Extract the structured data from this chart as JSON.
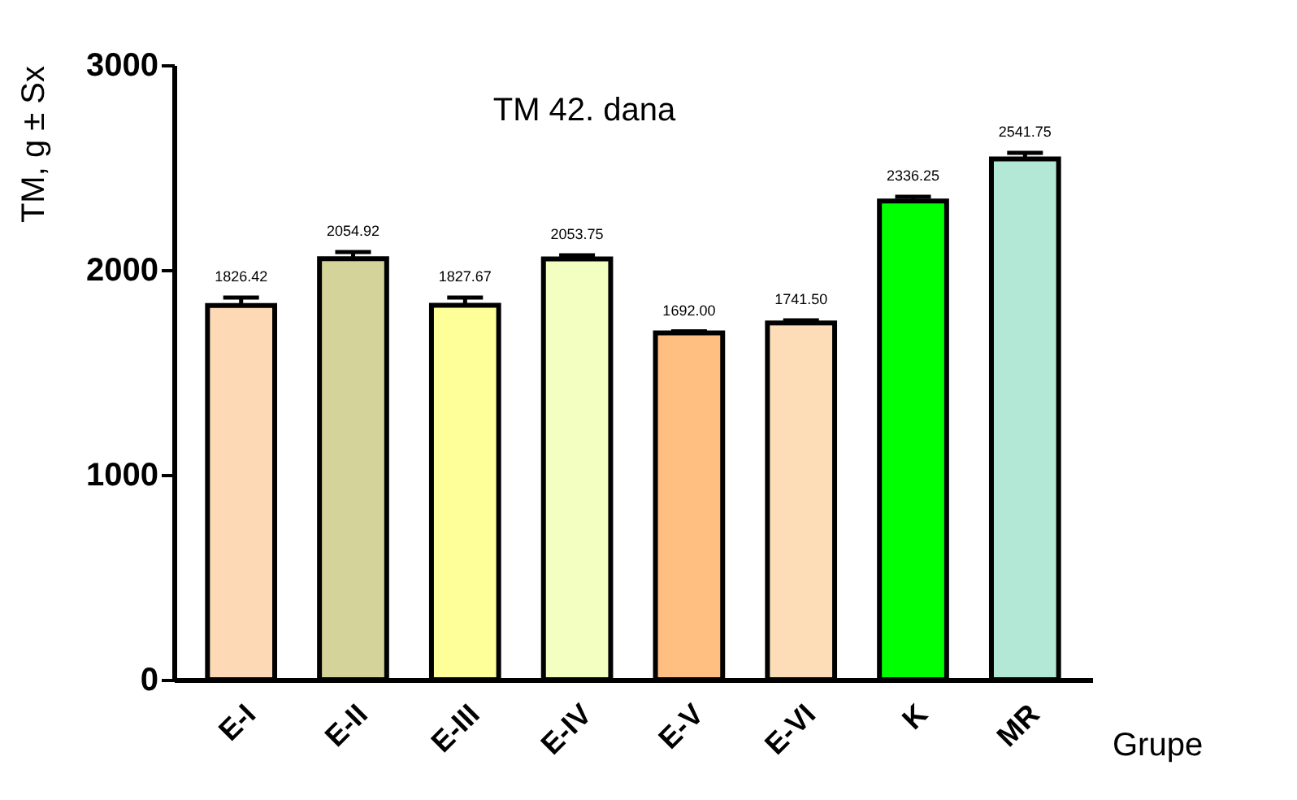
{
  "chart_data": {
    "type": "bar",
    "title": "TM 42. dana",
    "xlabel": "Grupe",
    "ylabel": "TM, g ± Sx",
    "categories": [
      "E-I",
      "E-II",
      "E-III",
      "E-IV",
      "E-V",
      "E-VI",
      "K",
      "MR"
    ],
    "values": [
      1826.42,
      2054.92,
      1827.67,
      2053.75,
      1692.0,
      1741.5,
      2336.25,
      2541.75
    ],
    "colors": [
      "#fdd9b5",
      "#d4d49a",
      "#ffff99",
      "#f2ffc0",
      "#ffbf80",
      "#fddcb8",
      "#00ff00",
      "#b3e8d6"
    ],
    "errors": [
      [
        1826.42,
        1865
      ],
      [
        2054.92,
        2087
      ],
      [
        1827.67,
        1865
      ],
      [
        2053.75,
        2071
      ],
      [
        1692.0,
        1700
      ],
      [
        1741.5,
        1754
      ],
      [
        2336.25,
        2357
      ],
      [
        2541.75,
        2571
      ]
    ],
    "value_labels": [
      "1826.42",
      "2054.92",
      "1827.67",
      "2053.75",
      "1692.00",
      "1741.50",
      "2336.25",
      "2541.75"
    ],
    "ylim": [
      0,
      3000
    ],
    "yticks": [
      0,
      1000,
      2000,
      3000
    ],
    "grid": false
  }
}
